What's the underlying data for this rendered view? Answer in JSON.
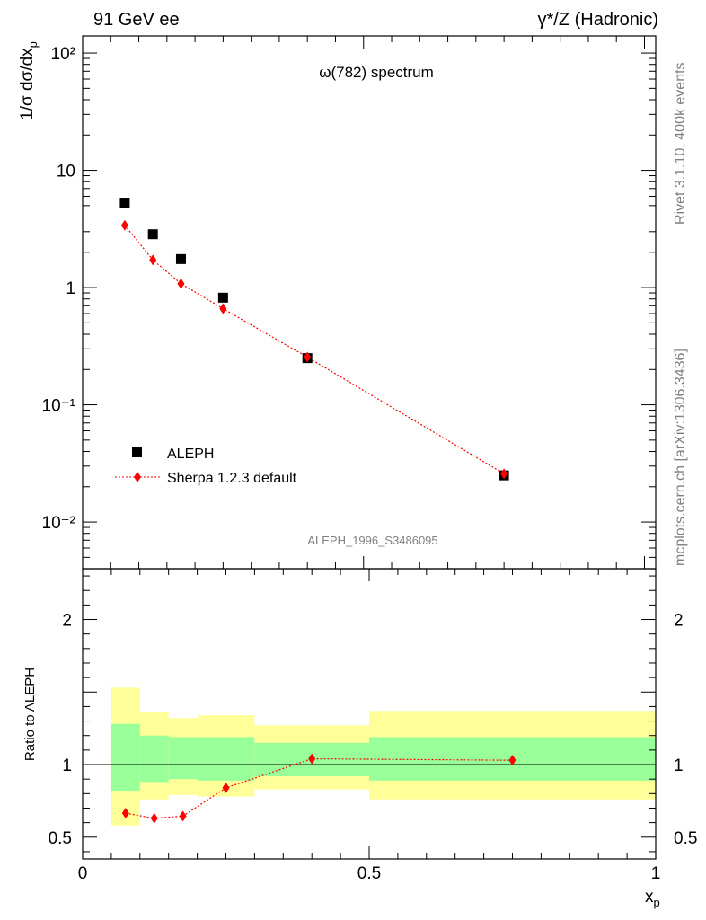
{
  "header": {
    "left": "91 GeV ee",
    "right": "γ*/Z (Hadronic)"
  },
  "side_text": {
    "rivet": "Rivet 3.1.10,  400k events",
    "mcplots": "mcplots.cern.ch [arXiv:1306.3436]"
  },
  "watermark": "ALEPH_1996_S3486095",
  "colors": {
    "data": "#000000",
    "mc": "#ff0000",
    "band_inner": "#99ff99",
    "band_outer": "#ffff99"
  },
  "chart_data": [
    {
      "type": "scatter",
      "title": "ω(782) spectrum",
      "ylabel": "1/σ dσ/dx_p",
      "yscale": "log",
      "ylim": [
        0.004,
        140
      ],
      "y_ticks": [
        {
          "value": 0.01,
          "label": "10⁻²"
        },
        {
          "value": 0.1,
          "label": "10⁻¹"
        },
        {
          "value": 1,
          "label": "1"
        },
        {
          "value": 10,
          "label": "10"
        },
        {
          "value": 100,
          "label": "10²"
        }
      ],
      "xlim": [
        0,
        1.02
      ],
      "legend": {
        "position": "lower-left",
        "entries": [
          "ALEPH",
          "Sherpa 1.2.3 default"
        ]
      },
      "series": [
        {
          "name": "ALEPH",
          "marker": "square",
          "points": [
            {
              "x": 0.075,
              "y": 5.3
            },
            {
              "x": 0.125,
              "y": 2.85
            },
            {
              "x": 0.175,
              "y": 1.75
            },
            {
              "x": 0.25,
              "y": 0.82
            },
            {
              "x": 0.4,
              "y": 0.25
            },
            {
              "x": 0.75,
              "y": 0.025
            }
          ]
        },
        {
          "name": "Sherpa 1.2.3 default",
          "marker": "diamond",
          "points": [
            {
              "x": 0.075,
              "y": 3.4
            },
            {
              "x": 0.125,
              "y": 1.72
            },
            {
              "x": 0.175,
              "y": 1.08
            },
            {
              "x": 0.25,
              "y": 0.66
            },
            {
              "x": 0.4,
              "y": 0.255
            },
            {
              "x": 0.75,
              "y": 0.0258
            }
          ]
        }
      ]
    },
    {
      "type": "line",
      "ylabel": "Ratio to ALEPH",
      "xlabel": "x_p",
      "ylim": [
        0.35,
        2.35
      ],
      "xlim": [
        0,
        1.0
      ],
      "y_ticks": [
        {
          "value": 0.5,
          "label": "0.5"
        },
        {
          "value": 1,
          "label": "1"
        },
        {
          "value": 2,
          "label": "2"
        }
      ],
      "x_ticks": [
        {
          "value": 0,
          "label": "0"
        },
        {
          "value": 0.5,
          "label": "0.5"
        },
        {
          "value": 1,
          "label": "1"
        }
      ],
      "bands": [
        {
          "x0": 0.05,
          "x1": 0.1,
          "outer": [
            0.58,
            1.53
          ],
          "inner": [
            0.82,
            1.28
          ]
        },
        {
          "x0": 0.1,
          "x1": 0.15,
          "outer": [
            0.76,
            1.36
          ],
          "inner": [
            0.88,
            1.2
          ]
        },
        {
          "x0": 0.15,
          "x1": 0.2,
          "outer": [
            0.79,
            1.32
          ],
          "inner": [
            0.9,
            1.19
          ]
        },
        {
          "x0": 0.2,
          "x1": 0.3,
          "outer": [
            0.78,
            1.34
          ],
          "inner": [
            0.89,
            1.19
          ]
        },
        {
          "x0": 0.3,
          "x1": 0.5,
          "outer": [
            0.83,
            1.27
          ],
          "inner": [
            0.92,
            1.15
          ]
        },
        {
          "x0": 0.5,
          "x1": 1.0,
          "outer": [
            0.76,
            1.37
          ],
          "inner": [
            0.89,
            1.19
          ]
        }
      ],
      "series": [
        {
          "name": "Sherpa 1.2.3 default",
          "marker": "diamond",
          "points": [
            {
              "x": 0.075,
              "y": 0.665
            },
            {
              "x": 0.125,
              "y": 0.63
            },
            {
              "x": 0.175,
              "y": 0.645
            },
            {
              "x": 0.25,
              "y": 0.84
            },
            {
              "x": 0.4,
              "y": 1.04
            },
            {
              "x": 0.75,
              "y": 1.03
            }
          ]
        }
      ]
    }
  ]
}
